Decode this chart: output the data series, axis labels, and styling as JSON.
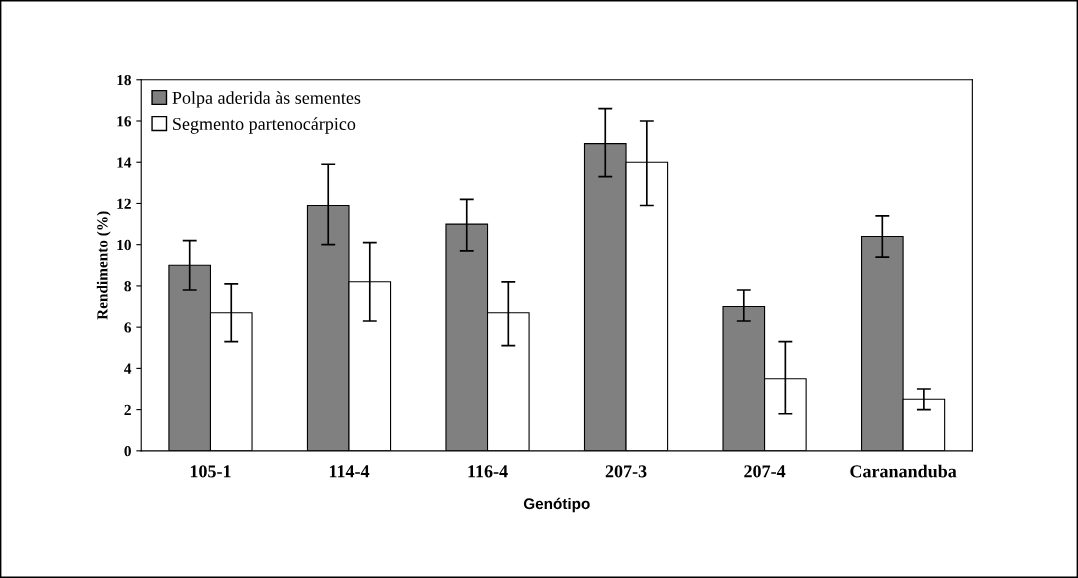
{
  "chart_data": {
    "type": "bar",
    "xlabel": "Genótipo",
    "ylabel": "Rendimento (%)",
    "categories": [
      "105-1",
      "114-4",
      "116-4",
      "207-3",
      "207-4",
      "Carananduba"
    ],
    "series": [
      {
        "name": "Polpa aderida às sementes",
        "color": "#808080",
        "values": [
          9.0,
          11.9,
          11.0,
          14.9,
          7.0,
          10.4
        ],
        "errors": [
          [
            7.8,
            10.2
          ],
          [
            10.0,
            13.9
          ],
          [
            9.7,
            12.2
          ],
          [
            13.3,
            16.6
          ],
          [
            6.3,
            7.8
          ],
          [
            9.4,
            11.4
          ]
        ]
      },
      {
        "name": "Segmento partenocárpico",
        "color": "#ffffff",
        "values": [
          6.7,
          8.2,
          6.7,
          14.0,
          3.5,
          2.5
        ],
        "errors": [
          [
            5.3,
            8.1
          ],
          [
            6.3,
            10.1
          ],
          [
            5.1,
            8.2
          ],
          [
            11.9,
            16.0
          ],
          [
            1.8,
            5.3
          ],
          [
            2.0,
            3.0
          ]
        ]
      }
    ],
    "ylim": [
      0,
      18
    ],
    "yticks": [
      0,
      2,
      4,
      6,
      8,
      10,
      12,
      14,
      16,
      18
    ],
    "grid": false,
    "legend": "top left"
  }
}
